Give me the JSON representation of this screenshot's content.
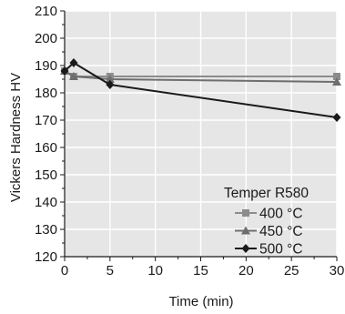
{
  "chart_data": {
    "type": "line",
    "title": "",
    "xlabel": "Time (min)",
    "ylabel": "Vickers Hardness HV",
    "xlim": [
      0,
      30
    ],
    "ylim": [
      120,
      210
    ],
    "xticks": [
      0,
      5,
      10,
      15,
      20,
      25,
      30
    ],
    "yticks": [
      120,
      130,
      140,
      150,
      160,
      170,
      180,
      190,
      200,
      210
    ],
    "grid": true,
    "background": "#e6e6e6",
    "legend_position": "bottom-right",
    "legend_title": "Temper R580",
    "series": [
      {
        "name": "400 °C",
        "color": "#8c8c8c",
        "marker": "square",
        "x": [
          0,
          1,
          5,
          30
        ],
        "y": [
          188,
          186,
          186,
          186
        ]
      },
      {
        "name": "450 °C",
        "color": "#6e6e6e",
        "marker": "triangle",
        "x": [
          0,
          1,
          5,
          30
        ],
        "y": [
          188,
          186,
          185,
          184
        ]
      },
      {
        "name": "500 °C",
        "color": "#1a1a1a",
        "marker": "diamond",
        "x": [
          0,
          1,
          5,
          30
        ],
        "y": [
          188,
          191,
          183,
          171
        ]
      }
    ]
  }
}
